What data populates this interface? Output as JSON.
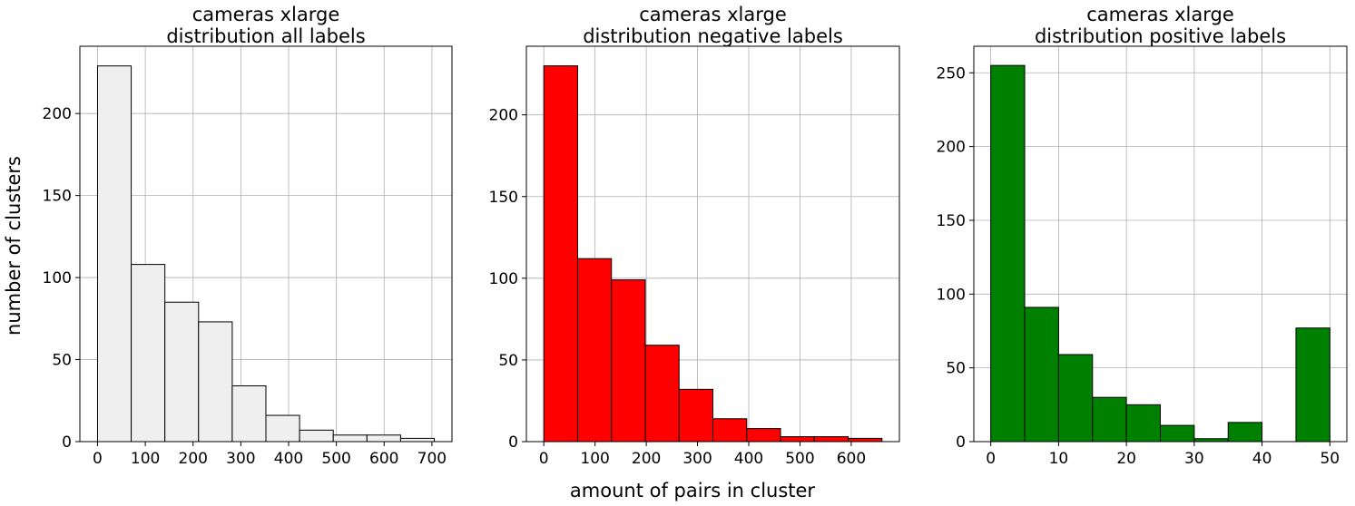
{
  "figure": {
    "ylabel": "number of clusters",
    "xlabel": "amount of pairs in cluster"
  },
  "chart_data": [
    {
      "type": "bar",
      "title_line1": "cameras xlarge",
      "title_line2": "distribution all labels",
      "color": "#efefef",
      "edgecolor": "#000000",
      "bin_edges": [
        0,
        70.5,
        141,
        211.5,
        282,
        352.5,
        423,
        493.5,
        564,
        634.5,
        705
      ],
      "values": [
        229,
        108,
        85,
        73,
        34,
        16,
        7,
        4,
        4,
        2
      ],
      "xlim": [
        -37,
        742
      ],
      "ylim": [
        0,
        241
      ],
      "xticks": [
        0,
        100,
        200,
        300,
        400,
        500,
        600,
        700
      ],
      "yticks": [
        0,
        50,
        100,
        150,
        200
      ],
      "grid": true
    },
    {
      "type": "bar",
      "title_line1": "cameras xlarge",
      "title_line2": "distribution negative labels",
      "color": "#ff0000",
      "edgecolor": "#000000",
      "bin_edges": [
        0,
        66,
        132,
        198,
        264,
        330,
        396,
        462,
        528,
        594,
        660
      ],
      "values": [
        230,
        112,
        99,
        59,
        32,
        14,
        8,
        3,
        3,
        2
      ],
      "xlim": [
        -34,
        694
      ],
      "ylim": [
        0,
        242
      ],
      "xticks": [
        0,
        100,
        200,
        300,
        400,
        500,
        600
      ],
      "yticks": [
        0,
        50,
        100,
        150,
        200
      ],
      "grid": true
    },
    {
      "type": "bar",
      "title_line1": "cameras xlarge",
      "title_line2": "distribution positive labels",
      "color": "#008000",
      "edgecolor": "#000000",
      "bin_edges": [
        0,
        5,
        10,
        15,
        20,
        25,
        30,
        35,
        40,
        45,
        50
      ],
      "values": [
        255,
        91,
        59,
        30,
        25,
        11,
        2,
        13,
        0,
        77
      ],
      "xlim": [
        -2.5,
        52.5
      ],
      "ylim": [
        0,
        268
      ],
      "xticks": [
        0,
        10,
        20,
        30,
        40,
        50
      ],
      "yticks": [
        0,
        50,
        100,
        150,
        200,
        250
      ],
      "grid": true
    }
  ]
}
